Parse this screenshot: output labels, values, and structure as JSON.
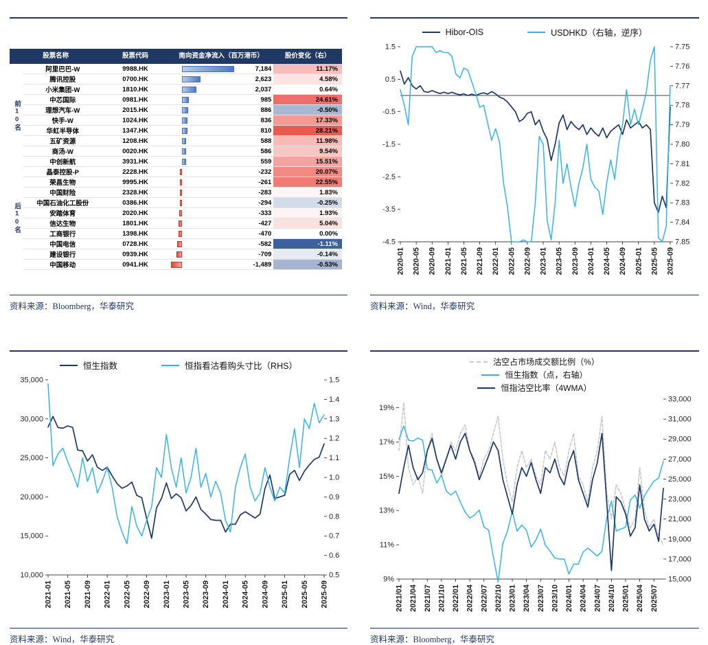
{
  "page": {
    "background": "#FFFFFF",
    "accent_navy": "#1F3864",
    "light_blue": "#36B2E8",
    "dark_line": "#1B3867",
    "gray_line": "#C8C8C8"
  },
  "chart_data": [
    {
      "id": "flows",
      "type": "table",
      "headers": {
        "name": "股票名称",
        "code": "股票代码",
        "flow": "南向资金净流入（百万港币）",
        "change": "股价变化（右）"
      },
      "row_groups": [
        {
          "label": "前10名",
          "count": 10
        },
        {
          "label": "后10名",
          "count": 10
        }
      ],
      "rows": [
        {
          "name": "阿里巴巴-W",
          "code": "9988.HK",
          "flow": 7184,
          "change": 11.17
        },
        {
          "name": "腾讯控股",
          "code": "0700.HK",
          "flow": 2623,
          "change": 4.58
        },
        {
          "name": "小米集团-W",
          "code": "1810.HK",
          "flow": 2037,
          "change": 0.64
        },
        {
          "name": "中芯国际",
          "code": "0981.HK",
          "flow": 985,
          "change": 24.61
        },
        {
          "name": "理想汽车-W",
          "code": "2015.HK",
          "flow": 886,
          "change": -0.5
        },
        {
          "name": "快手-W",
          "code": "1024.HK",
          "flow": 836,
          "change": 17.33
        },
        {
          "name": "华虹半导体",
          "code": "1347.HK",
          "flow": 810,
          "change": 28.21
        },
        {
          "name": "五矿资源",
          "code": "1208.HK",
          "flow": 588,
          "change": 11.98
        },
        {
          "name": "商汤-W",
          "code": "0020.HK",
          "flow": 586,
          "change": 9.54
        },
        {
          "name": "中创新航",
          "code": "3931.HK",
          "flow": 559,
          "change": 15.51
        },
        {
          "name": "晶泰控股-P",
          "code": "2228.HK",
          "flow": -232,
          "change": 20.07
        },
        {
          "name": "荣昌生物",
          "code": "9995.HK",
          "flow": -261,
          "change": 22.55
        },
        {
          "name": "中国财险",
          "code": "2328.HK",
          "flow": -283,
          "change": 1.83
        },
        {
          "name": "中国石油化工股份",
          "code": "0386.HK",
          "flow": -294,
          "change": -0.25
        },
        {
          "name": "安踏体育",
          "code": "2020.HK",
          "flow": -333,
          "change": 1.93
        },
        {
          "name": "信达生物",
          "code": "1801.HK",
          "flow": -427,
          "change": 5.04
        },
        {
          "name": "工商银行",
          "code": "1398.HK",
          "flow": -470,
          "change": 0.0
        },
        {
          "name": "中国电信",
          "code": "0728.HK",
          "flow": -582,
          "change": -1.11
        },
        {
          "name": "建设银行",
          "code": "0939.HK",
          "flow": -709,
          "change": -0.14
        },
        {
          "name": "中国移动",
          "code": "0941.HK",
          "flow": -1489,
          "change": -0.53
        }
      ],
      "source": "资料来源：Bloomberg，华泰研究"
    },
    {
      "id": "hibor",
      "type": "line",
      "title": "",
      "legend": [
        {
          "label": "Hibor-OIS",
          "color": "#1B3867",
          "dash": false
        },
        {
          "label": "USDHKD（右轴，逆序）",
          "color": "#36B2E8",
          "dash": false
        }
      ],
      "x_labels": [
        "2020-01",
        "2020-05",
        "2020-09",
        "2021-01",
        "2021-05",
        "2021-09",
        "2022-01",
        "2022-05",
        "2022-09",
        "2023-01",
        "2023-05",
        "2023-09",
        "2024-01",
        "2024-05",
        "2024-09",
        "2025-01",
        "2025-05",
        "2025-09"
      ],
      "x_label_step": 4,
      "n": 69,
      "left_axis": {
        "min": -4.5,
        "max": 1.5,
        "tick_values": [
          1.5,
          0.5,
          -0.5,
          -1.5,
          -2.5,
          -3.5,
          -4.5
        ],
        "tick_labels": [
          "1.5",
          "0.5",
          "-0.5",
          "-1.5",
          "-2.5",
          "-3.5",
          "-4.5"
        ]
      },
      "right_axis": {
        "min": 7.75,
        "max": 7.85,
        "reversed": true,
        "tick_values": [
          7.75,
          7.76,
          7.77,
          7.78,
          7.79,
          7.8,
          7.81,
          7.82,
          7.83,
          7.84,
          7.85
        ],
        "tick_labels": [
          "7.75",
          "7.76",
          "7.77",
          "7.78",
          "7.79",
          "7.80",
          "7.81",
          "7.82",
          "7.83",
          "7.84",
          "7.85"
        ]
      },
      "zero_line": true,
      "series": [
        {
          "name": "Hibor-OIS",
          "axis": "left",
          "color": "#1B3867",
          "width": 1.7,
          "dash": false,
          "values": [
            0.75,
            0.35,
            0.55,
            0.3,
            0.2,
            0.3,
            0.12,
            0.1,
            0.15,
            0.1,
            0.06,
            0.1,
            0.06,
            0.1,
            0.05,
            0.02,
            0.05,
            0,
            0.04,
            0,
            0.05,
            0.08,
            0.04,
            0.12,
            0.05,
            -0.05,
            -0.1,
            -0.2,
            -0.35,
            -0.5,
            -0.8,
            -0.72,
            -0.55,
            -0.5,
            -0.9,
            -0.75,
            -1.1,
            -1.35,
            -2,
            -1.5,
            -0.85,
            -0.6,
            -1.05,
            -0.8,
            -0.95,
            -1.05,
            -0.9,
            -1.2,
            -1,
            -1.15,
            -1.25,
            -1,
            -1.3,
            -1.1,
            -1,
            -0.9,
            -1.2,
            -0.75,
            -1,
            -0.9,
            -0.8,
            -1,
            -0.9,
            -1.05,
            -3.3,
            -3.6,
            -3.1,
            -3.45,
            -0.35
          ]
        },
        {
          "name": "USDHKD",
          "axis": "right",
          "color": "#36B2E8",
          "width": 1.5,
          "dash": false,
          "values": [
            7.772,
            7.78,
            7.79,
            7.755,
            7.75,
            7.75,
            7.75,
            7.75,
            7.75,
            7.753,
            7.752,
            7.753,
            7.753,
            7.755,
            7.764,
            7.766,
            7.761,
            7.762,
            7.768,
            7.774,
            7.781,
            7.78,
            7.789,
            7.798,
            7.792,
            7.799,
            7.82,
            7.832,
            7.85,
            7.85,
            7.85,
            7.849,
            7.85,
            7.85,
            7.83,
            7.796,
            7.8,
            7.839,
            7.849,
            7.83,
            7.798,
            7.82,
            7.81,
            7.822,
            7.832,
            7.82,
            7.812,
            7.8,
            7.818,
            7.822,
            7.824,
            7.836,
            7.82,
            7.808,
            7.818,
            7.8,
            7.79,
            7.772,
            7.79,
            7.782,
            7.79,
            7.782,
            7.773,
            7.757,
            7.75,
            7.848,
            7.85,
            7.842,
            7.77
          ]
        }
      ],
      "source": "资料来源：Wind，华泰研究"
    },
    {
      "id": "hsi_pcr",
      "type": "line",
      "title": "",
      "legend": [
        {
          "label": "恒生指数",
          "color": "#1B3867",
          "dash": false
        },
        {
          "label": "恒指看沽看购头寸比（RHS）",
          "color": "#36B2E8",
          "dash": false
        }
      ],
      "x_labels": [
        "2021-01",
        "2021-05",
        "2021-09",
        "2022-01",
        "2022-05",
        "2022-09",
        "2023-01",
        "2023-05",
        "2023-09",
        "2024-01",
        "2024-05",
        "2024-09",
        "2025-01",
        "2025-05",
        "2025-09"
      ],
      "x_label_step": 4,
      "n": 57,
      "left_axis": {
        "min": 10000,
        "max": 35000,
        "tick_values": [
          35000,
          30000,
          25000,
          20000,
          15000,
          10000
        ],
        "tick_labels": [
          "35,000",
          "30,000",
          "25,000",
          "20,000",
          "15,000",
          "10,000"
        ]
      },
      "right_axis": {
        "min": 0.5,
        "max": 1.5,
        "reversed": false,
        "tick_values": [
          1.5,
          1.4,
          1.3,
          1.2,
          1.1,
          1.0,
          0.9,
          0.8,
          0.7,
          0.6,
          0.5
        ],
        "tick_labels": [
          "1.5",
          "1.4",
          "1.3",
          "1.2",
          "1.1",
          "1.0",
          "0.9",
          "0.8",
          "0.7",
          "0.6",
          "0.5"
        ]
      },
      "zero_line": false,
      "series": [
        {
          "name": "恒生指数",
          "axis": "left",
          "color": "#1B3867",
          "width": 1.7,
          "dash": false,
          "values": [
            28960,
            30300,
            28900,
            28800,
            29100,
            28900,
            26000,
            25900,
            24600,
            25400,
            23800,
            23400,
            23800,
            22700,
            21700,
            21100,
            21400,
            21900,
            20200,
            19900,
            17200,
            14700,
            18600,
            19800,
            21800,
            19800,
            20400,
            19900,
            18200,
            18900,
            20000,
            18400,
            17800,
            17100,
            17000,
            17000,
            15500,
            16500,
            16500,
            17700,
            18100,
            17700,
            17300,
            17800,
            21100,
            22800,
            19800,
            20000,
            20200,
            22900,
            23400,
            22100,
            23300,
            24100,
            24800,
            25100,
            26800
          ]
        },
        {
          "name": "恒指看沽看购头寸比",
          "axis": "right",
          "color": "#36B2E8",
          "width": 1.5,
          "dash": false,
          "values": [
            1.48,
            1.06,
            1.12,
            1.15,
            1.08,
            1.02,
            0.95,
            1.1,
            0.98,
            1.05,
            0.92,
            0.98,
            1.05,
            0.95,
            0.8,
            0.72,
            0.66,
            0.85,
            0.75,
            0.7,
            0.78,
            0.85,
            1.05,
            1.0,
            1.22,
            1.05,
            0.95,
            1.1,
            0.92,
            1.0,
            1.15,
            0.95,
            1.02,
            0.9,
            0.98,
            0.92,
            0.78,
            0.72,
            0.95,
            1.05,
            1.12,
            0.95,
            0.88,
            0.92,
            1.05,
            0.95,
            0.88,
            0.95,
            0.92,
            1.1,
            1.25,
            1.05,
            1.3,
            1.25,
            1.38,
            1.28,
            1.32
          ]
        }
      ],
      "source": "资料来源：Wind，华泰研究"
    },
    {
      "id": "short",
      "type": "line",
      "title": "",
      "legend": [
        {
          "label": "沽空占市场成交额比例（%）",
          "color": "#C8C8C8",
          "dash": true
        },
        {
          "label": "恒生指数（点，右轴）",
          "color": "#36B2E8",
          "dash": false
        },
        {
          "label": "恒指沽空比率（4WMA）",
          "color": "#1B3867",
          "dash": false
        }
      ],
      "x_labels": [
        "2021/01",
        "2021/04",
        "2021/07",
        "2021/10",
        "2022/01",
        "2022/04",
        "2022/07",
        "2022/10",
        "2023/01",
        "2023/04",
        "2023/07",
        "2023/10",
        "2024/01",
        "2024/04",
        "2024/07",
        "2024/10",
        "2025/01",
        "2025/04",
        "2025/07"
      ],
      "x_label_step": 3,
      "n": 57,
      "left_axis": {
        "min": 9,
        "max": 19.5,
        "tick_values": [
          19,
          17,
          15,
          13,
          11,
          9
        ],
        "tick_labels": [
          "19%",
          "17%",
          "15%",
          "13%",
          "11%",
          "9%"
        ]
      },
      "right_axis": {
        "min": 15000,
        "max": 33000,
        "reversed": false,
        "tick_values": [
          33000,
          31000,
          29000,
          27000,
          25000,
          23000,
          21000,
          19000,
          17000,
          15000
        ],
        "tick_labels": [
          "33,000",
          "31,000",
          "29,000",
          "27,000",
          "25,000",
          "23,000",
          "21,000",
          "19,000",
          "17,000",
          "15,000"
        ]
      },
      "zero_line": false,
      "series": [
        {
          "name": "沽空占市场成交额比例",
          "axis": "left",
          "color": "#C8C8C8",
          "width": 1.6,
          "dash": true,
          "values": [
            16.5,
            19.3,
            15.5,
            14.5,
            15.0,
            14.0,
            16.5,
            17.5,
            16.0,
            15.0,
            16.0,
            17.0,
            16.5,
            17.5,
            18.0,
            16.5,
            16.0,
            15.0,
            16.0,
            16.5,
            17.5,
            18.5,
            16.0,
            14.5,
            13.5,
            15.5,
            16.5,
            15.5,
            16.0,
            15.0,
            14.5,
            16.5,
            16.0,
            17.0,
            15.5,
            15.0,
            16.5,
            17.5,
            15.0,
            14.5,
            13.5,
            15.5,
            16.5,
            18.5,
            14.0,
            12.5,
            14.5,
            14.0,
            13.0,
            12.0,
            12.5,
            15.5,
            13.0,
            12.0,
            12.5,
            11.5,
            11.0
          ]
        },
        {
          "name": "恒生指数",
          "axis": "right",
          "color": "#36B2E8",
          "width": 1.5,
          "dash": false,
          "values": [
            28960,
            30300,
            28900,
            28800,
            29100,
            28900,
            26000,
            25900,
            24600,
            25400,
            23800,
            23400,
            23800,
            22700,
            21700,
            21100,
            21400,
            21900,
            20200,
            19900,
            17200,
            14700,
            18600,
            19800,
            21800,
            19800,
            20400,
            19900,
            18200,
            18900,
            20000,
            18400,
            17800,
            17100,
            17000,
            17000,
            15500,
            16500,
            16500,
            17700,
            18100,
            17700,
            17300,
            17800,
            21100,
            22800,
            19800,
            20000,
            20200,
            22900,
            23400,
            22100,
            23300,
            24100,
            24800,
            25100,
            26800
          ]
        },
        {
          "name": "恒指沽空比率（4WMA）",
          "axis": "left",
          "color": "#1B3867",
          "width": 1.7,
          "dash": false,
          "values": [
            14.0,
            15.5,
            16.8,
            15.5,
            14.8,
            15.2,
            16.5,
            17.2,
            16.0,
            15.2,
            16.0,
            16.8,
            16.0,
            17.0,
            17.5,
            16.5,
            15.8,
            14.8,
            15.5,
            16.2,
            17.0,
            16.5,
            14.8,
            13.8,
            12.8,
            14.5,
            15.5,
            15.0,
            15.8,
            14.8,
            14.0,
            15.5,
            15.2,
            16.0,
            15.0,
            14.5,
            15.8,
            16.5,
            14.8,
            14.0,
            13.2,
            14.8,
            15.8,
            17.5,
            13.5,
            9.5,
            13.8,
            13.5,
            12.8,
            11.5,
            12.0,
            14.5,
            12.5,
            11.8,
            12.2,
            11.2,
            14.3
          ]
        }
      ],
      "source": "资料来源：Bloomberg，华泰研究"
    }
  ]
}
